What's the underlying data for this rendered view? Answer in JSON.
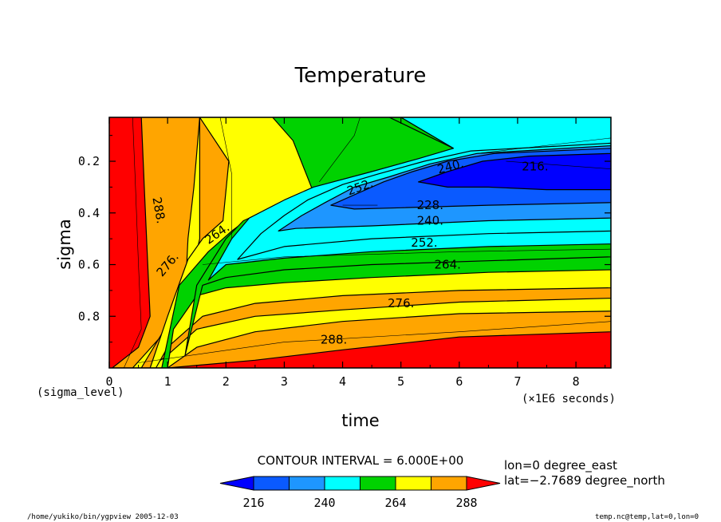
{
  "chart_data": {
    "type": "heatmap",
    "title": "Temperature",
    "xlabel": "time",
    "x_units_label": "(×1E6 seconds)",
    "ylabel": "sigma",
    "y_units_label": "(sigma_level)",
    "xlim": [
      0,
      8.6
    ],
    "ylim": [
      1.0,
      0.03
    ],
    "x_ticks": [
      "0",
      "1",
      "2",
      "3",
      "4",
      "5",
      "6",
      "7",
      "8"
    ],
    "y_ticks": [
      "0.2",
      "0.4",
      "0.6",
      "0.8"
    ],
    "contour_labels": [
      "288.",
      "276.",
      "264.",
      "252.",
      "240.",
      "228.",
      "216."
    ],
    "colorbar": {
      "levels": [
        222,
        228,
        234,
        240,
        246,
        252,
        258,
        264,
        270,
        276,
        282
      ],
      "tick_labels": [
        "216",
        "240",
        "264",
        "288"
      ],
      "colors": [
        "#0000ff",
        "#0a5aff",
        "#1e96ff",
        "#00ffff",
        "#00d200",
        "#00d200",
        "#ffff00",
        "#ffff00",
        "#ffa500",
        "#ffa500",
        "#ff0000",
        "#ff0000"
      ]
    },
    "contour_interval_text": "CONTOUR INTERVAL = 6.000E+00",
    "slice_info": [
      "lon=0 degree_east",
      "lat=−2.7689 degree_north"
    ],
    "grid": false
  },
  "footer": {
    "left": "/home/yukiko/bin/ygpview  2005-12-03",
    "right": "temp.nc@temp,lat=0,lon=0"
  }
}
